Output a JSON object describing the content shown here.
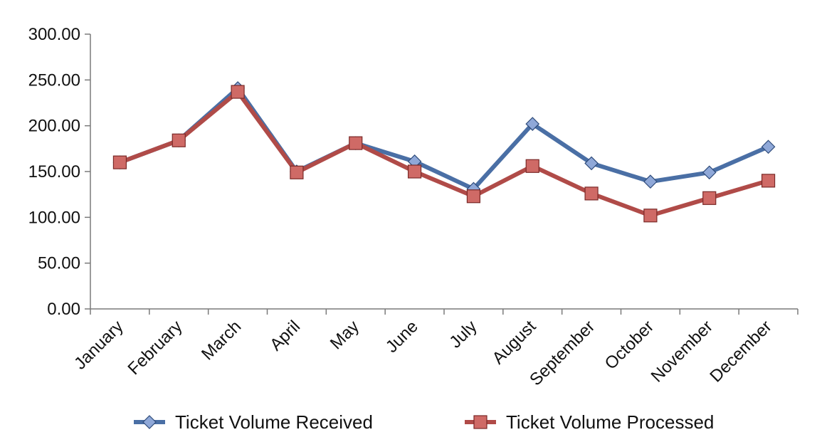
{
  "chart_data": {
    "type": "line",
    "title": "",
    "xlabel": "",
    "ylabel": "",
    "categories": [
      "January",
      "February",
      "March",
      "April",
      "May",
      "June",
      "July",
      "August",
      "September",
      "October",
      "November",
      "December"
    ],
    "y_ticks": [
      "0.00",
      "50.00",
      "100.00",
      "150.00",
      "200.00",
      "250.00",
      "300.00"
    ],
    "ylim": [
      0,
      300
    ],
    "grid": false,
    "legend_position": "bottom",
    "series": [
      {
        "name": "Ticket Volume Received",
        "color": "#4A6FA5",
        "marker_fill": "#8FA8D8",
        "marker": "diamond",
        "values": [
          160,
          184,
          241,
          150,
          181,
          161,
          131,
          202,
          159,
          139,
          149,
          177
        ]
      },
      {
        "name": "Ticket Volume Processed",
        "color": "#B04B48",
        "marker_fill": "#CF6A66",
        "marker": "square",
        "values": [
          160,
          184,
          237,
          149,
          181,
          150,
          123,
          156,
          126,
          102,
          121,
          140
        ]
      }
    ]
  }
}
